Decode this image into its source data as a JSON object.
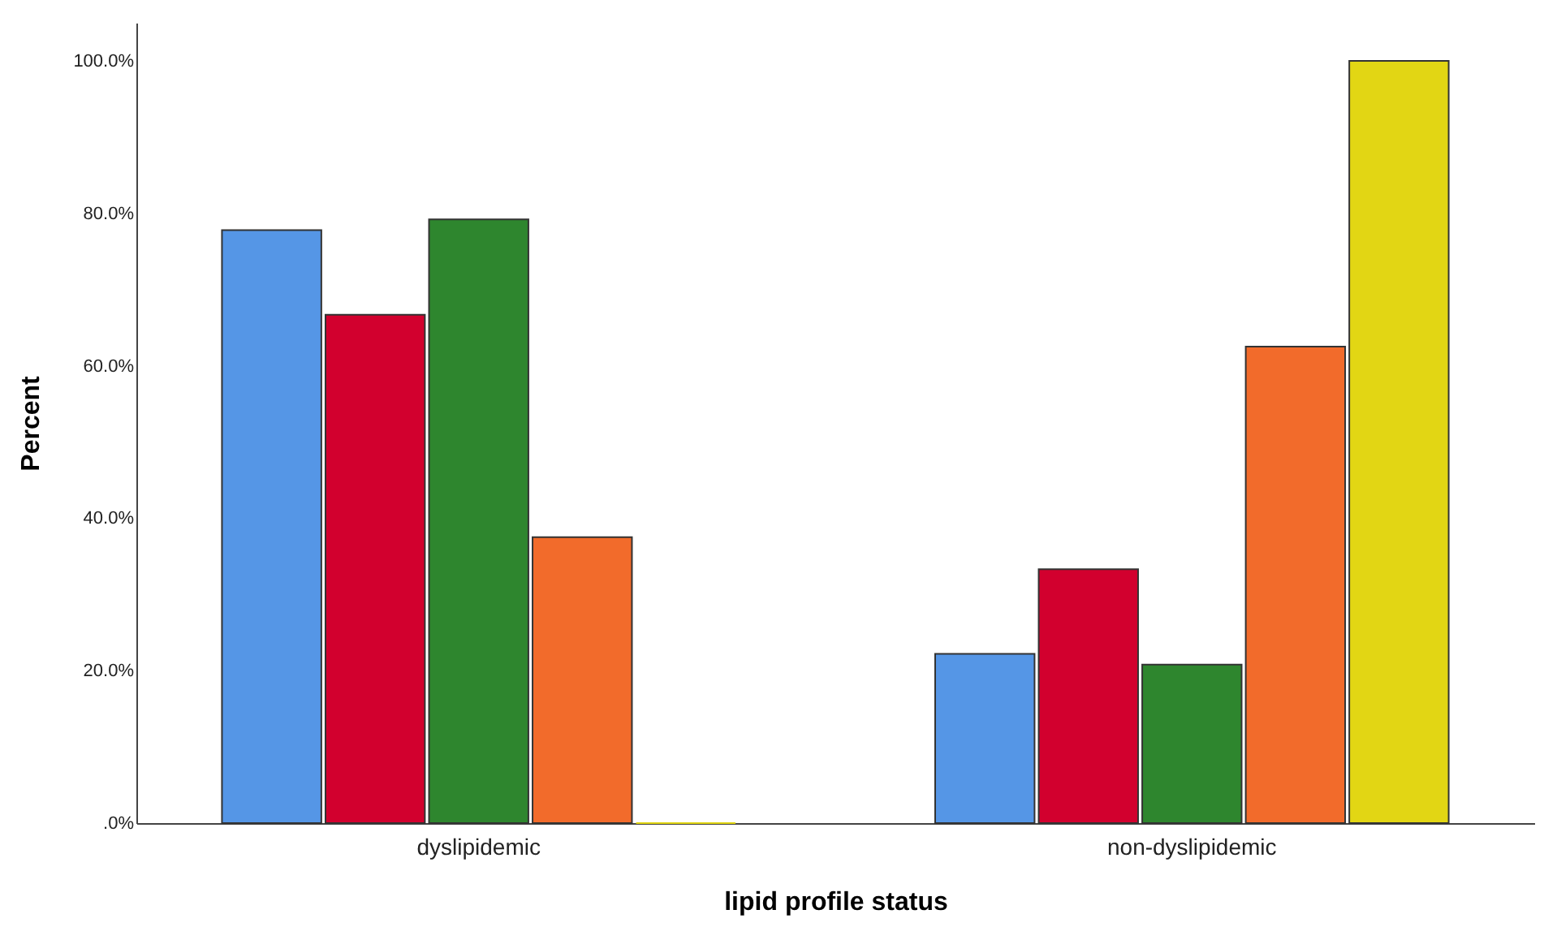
{
  "chart_data": {
    "type": "bar",
    "xlabel": "lipid profile status",
    "ylabel": "Percent",
    "categories": [
      "dyslipidemic",
      "non-dyslipidemic"
    ],
    "series": [
      {
        "color": "#5596e6",
        "values": [
          77.8,
          22.2
        ]
      },
      {
        "color": "#d2002e",
        "values": [
          66.7,
          33.3
        ]
      },
      {
        "color": "#2e862e",
        "values": [
          79.2,
          20.8
        ]
      },
      {
        "color": "#f26b2b",
        "values": [
          37.5,
          62.5
        ]
      },
      {
        "color": "#e2d614",
        "values": [
          0,
          100
        ]
      }
    ],
    "ylim": [
      0,
      105
    ],
    "yticks": [
      {
        "value": 0,
        "label": ".0%"
      },
      {
        "value": 20,
        "label": "20.0%"
      },
      {
        "value": 40,
        "label": "40.0%"
      },
      {
        "value": 60,
        "label": "60.0%"
      },
      {
        "value": 80,
        "label": "80.0%"
      },
      {
        "value": 100,
        "label": "100.0%"
      }
    ],
    "grid": false,
    "legend": false
  }
}
